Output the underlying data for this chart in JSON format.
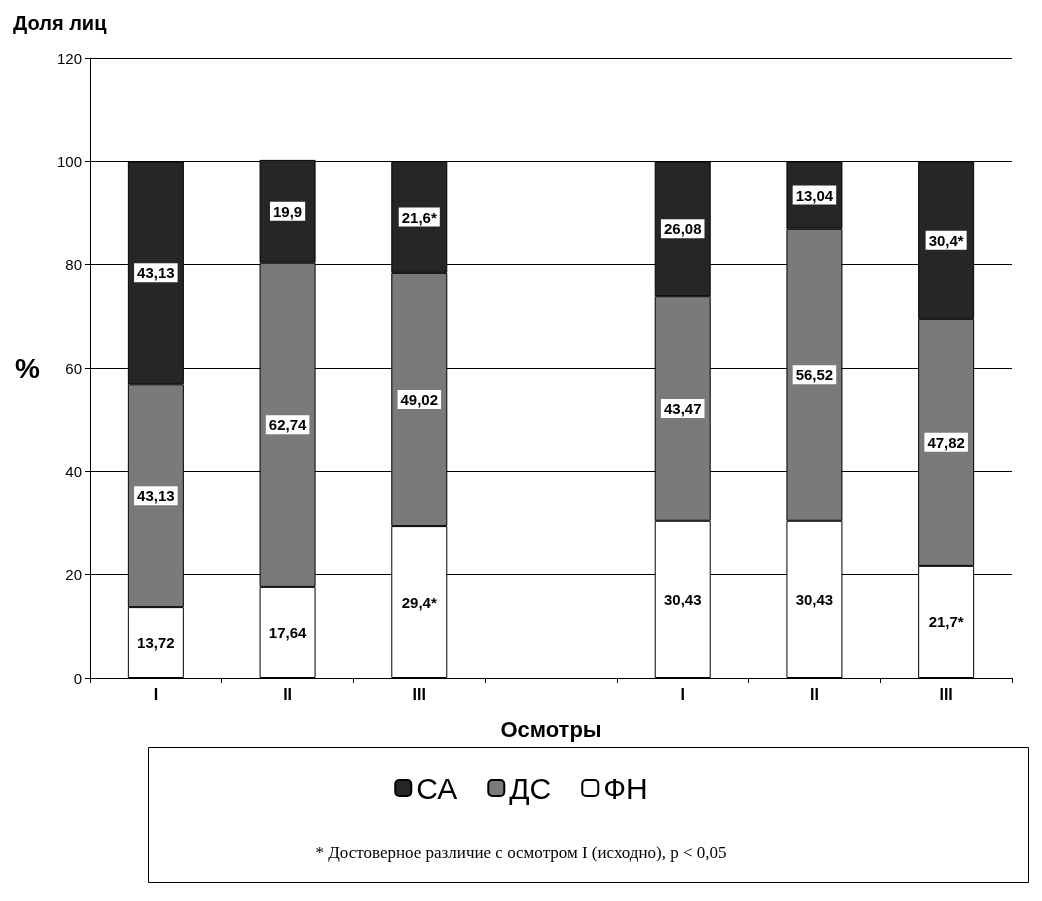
{
  "chart_data": {
    "type": "bar",
    "stacked": true,
    "title": "Доля лиц",
    "xlabel": "Осмотры",
    "ylabel": "%",
    "categories": [
      "I",
      "II",
      "III",
      null,
      "I",
      "II",
      "III"
    ],
    "series": [
      {
        "name": "ФН",
        "color": "#ffffff",
        "values": [
          13.72,
          17.64,
          29.4,
          null,
          30.43,
          30.43,
          21.7
        ],
        "value_labels": [
          "13,72",
          "17,64",
          "29,4*",
          null,
          "30,43",
          "30,43",
          "21,7*"
        ]
      },
      {
        "name": "ДС",
        "color": "#7a7a7a",
        "values": [
          43.13,
          62.74,
          49.02,
          null,
          43.47,
          56.52,
          47.82
        ],
        "value_labels": [
          "43,13",
          "62,74",
          "49,02",
          null,
          "43,47",
          "56,52",
          "47,82"
        ]
      },
      {
        "name": "СА",
        "color": "#262626",
        "values": [
          43.13,
          19.9,
          21.6,
          null,
          26.08,
          13.04,
          30.4
        ],
        "value_labels": [
          "43,13",
          "19,9",
          "21,6*",
          null,
          "26,08",
          "13,04",
          "30,4*"
        ]
      }
    ],
    "ylim": [
      0,
      120
    ],
    "yticks": [
      0,
      20,
      40,
      60,
      80,
      100,
      120
    ],
    "grid": "y",
    "legend": "bottom",
    "annotations": [
      "* Достоверное различие с осмотром I (исходно), p < 0,05"
    ]
  }
}
